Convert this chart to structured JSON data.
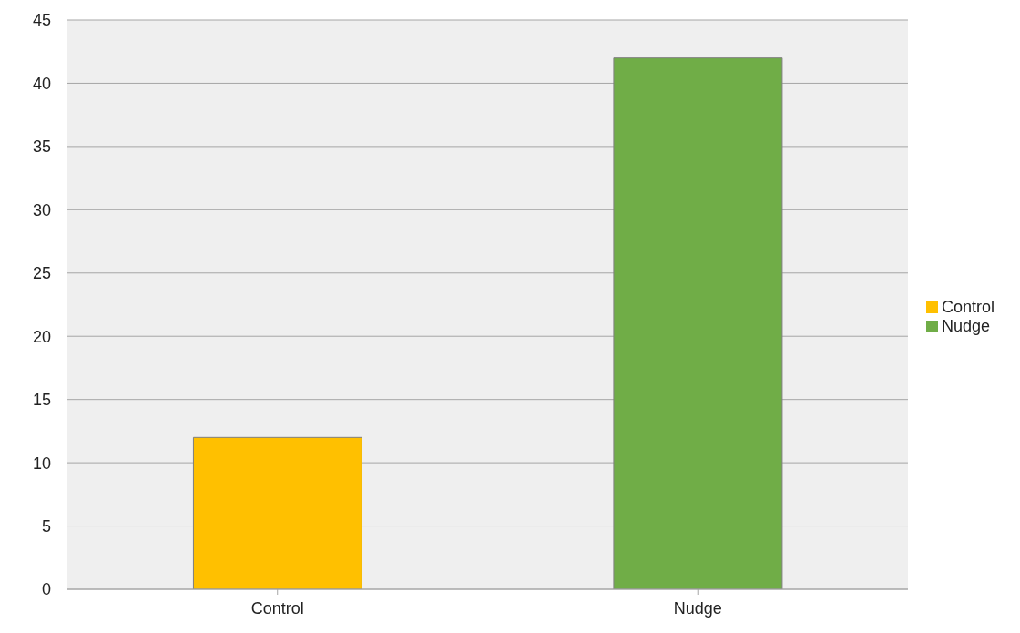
{
  "chart_data": {
    "type": "bar",
    "categories": [
      "Control",
      "Nudge"
    ],
    "series": [
      {
        "name": "Control",
        "color": "#ffc000",
        "values": [
          12,
          null
        ]
      },
      {
        "name": "Nudge",
        "color": "#70ad47",
        "values": [
          null,
          42
        ]
      }
    ],
    "ylim": [
      0,
      45
    ],
    "yticks": [
      0,
      5,
      10,
      15,
      20,
      25,
      30,
      35,
      40,
      45
    ],
    "grid": "y",
    "legend": "right"
  }
}
